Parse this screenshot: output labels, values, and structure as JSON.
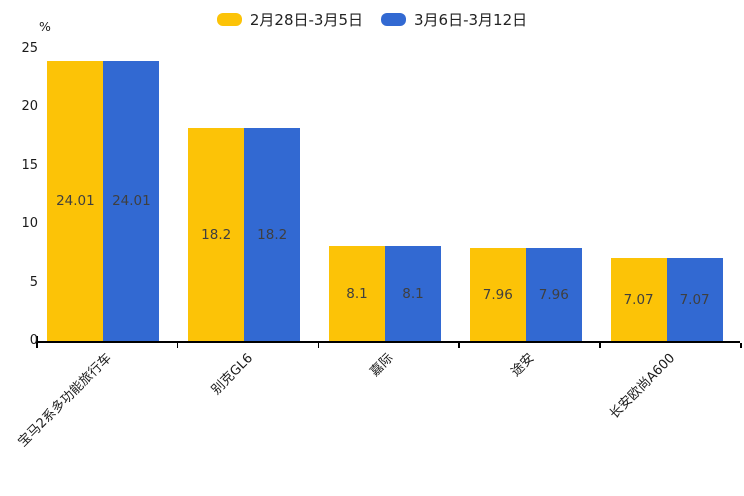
{
  "chart_data": {
    "type": "bar",
    "title": "",
    "ylabel": "%",
    "categories": [
      "宝马2系多功能旅行车",
      "别克GL6",
      "嘉际",
      "途安",
      "长安欧尚A600"
    ],
    "series": [
      {
        "name": "2月28日-3月5日",
        "color": "#FCC307",
        "values": [
          24.01,
          18.2,
          8.1,
          7.96,
          7.07
        ]
      },
      {
        "name": "3月6日-3月12日",
        "color": "#3269D2",
        "values": [
          24.01,
          18.2,
          8.1,
          7.96,
          7.07
        ]
      }
    ],
    "ylim": [
      0,
      25
    ],
    "yticks": [
      0,
      5,
      10,
      15,
      20,
      25
    ],
    "grid": false,
    "legend_position": "top-center",
    "value_label_position": "inside-center",
    "colors": {
      "axis": "#000000",
      "tick_label": "#1a1a1a",
      "category_label": "#1a1a1a",
      "value_label": "#3f3f3f",
      "legend_text": "#222222",
      "background": "#ffffff"
    }
  }
}
